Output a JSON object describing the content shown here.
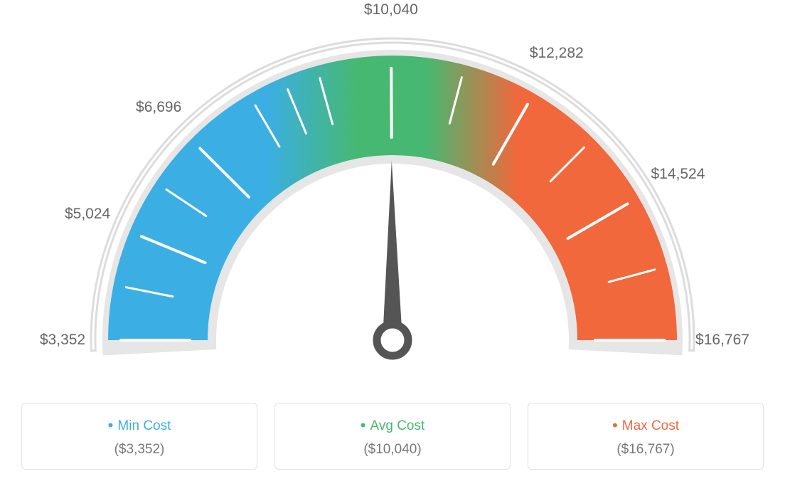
{
  "gauge": {
    "type": "gauge",
    "min_value": 3352,
    "max_value": 16767,
    "avg_value": 10040,
    "tick_values": [
      3352,
      5024,
      6696,
      10040,
      12282,
      14524,
      16767
    ],
    "tick_labels": [
      "$3,352",
      "$5,024",
      "$6,696",
      "$10,040",
      "$12,282",
      "$14,524",
      "$16,767"
    ],
    "arc_inner_radius": 260,
    "arc_outer_radius": 400,
    "outline_radius": 418,
    "start_angle_deg": 180,
    "end_angle_deg": 0,
    "colors": {
      "min": "#3bafe3",
      "avg": "#47b871",
      "max": "#f0683c",
      "outline": "#dcdcdc",
      "tick": "#ffffff",
      "needle": "#555555",
      "back_ring": "#e6e6e6"
    },
    "tick_label_fontsize": 21,
    "background_color": "#ffffff"
  },
  "legend": {
    "min": {
      "label": "Min Cost",
      "value": "($3,352)"
    },
    "avg": {
      "label": "Avg Cost",
      "value": "($10,040)"
    },
    "max": {
      "label": "Max Cost",
      "value": "($16,767)"
    }
  }
}
